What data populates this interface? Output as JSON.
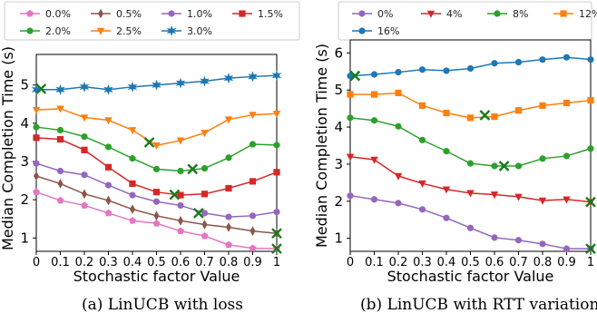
{
  "chart_data": [
    {
      "type": "line",
      "xlabel": "Stochastic factor Value",
      "ylabel": "Median Completion Time (s)",
      "xlim": [
        0,
        1.0
      ],
      "ylim": [
        0.65,
        5.8
      ],
      "x_ticks": [
        0,
        0.1,
        0.2,
        0.3,
        0.4,
        0.5,
        0.6,
        0.7,
        0.8,
        0.9,
        1
      ],
      "x_tick_labels": [
        "0",
        "0.1",
        "0.2",
        "0.3",
        "0.4",
        "0.5",
        "0.6",
        "0.7",
        "0.8",
        "0.9",
        "1"
      ],
      "y_ticks": [
        1,
        2,
        3,
        4,
        5
      ],
      "y_tick_labels": [
        "1",
        "2",
        "3",
        "4",
        "5"
      ],
      "grid": false,
      "legend_placement": "top",
      "legend_columns": 4,
      "x": [
        0,
        0.1,
        0.2,
        0.3,
        0.4,
        0.5,
        0.6,
        0.7,
        0.8,
        0.9,
        1.0
      ],
      "series": [
        {
          "name": "0.0%",
          "color": "#e377c2",
          "marker": "pentagon",
          "values": [
            2.2,
            1.98,
            1.85,
            1.65,
            1.45,
            1.38,
            1.18,
            1.05,
            0.82,
            0.73,
            0.72
          ],
          "optimum": [
            1.0,
            0.72
          ]
        },
        {
          "name": "0.5%",
          "color": "#8c564b",
          "marker": "thin_diamond",
          "values": [
            2.62,
            2.42,
            2.15,
            1.98,
            1.75,
            1.58,
            1.45,
            1.35,
            1.28,
            1.18,
            1.12
          ],
          "optimum": [
            1.0,
            1.12
          ]
        },
        {
          "name": "1.0%",
          "color": "#9467bd",
          "marker": "circle",
          "values": [
            2.95,
            2.75,
            2.65,
            2.38,
            2.12,
            1.95,
            1.85,
            1.65,
            1.55,
            1.58,
            1.68
          ],
          "optimum": [
            0.675,
            1.65
          ]
        },
        {
          "name": "1.5%",
          "color": "#d62728",
          "marker": "square",
          "values": [
            3.62,
            3.58,
            3.3,
            2.85,
            2.42,
            2.2,
            2.12,
            2.15,
            2.3,
            2.48,
            2.72
          ],
          "optimum": [
            0.575,
            2.13
          ]
        },
        {
          "name": "2.0%",
          "color": "#2ca02c",
          "marker": "circle",
          "values": [
            3.9,
            3.82,
            3.65,
            3.38,
            3.08,
            2.8,
            2.75,
            2.82,
            3.1,
            3.45,
            3.43
          ],
          "optimum": [
            0.65,
            2.8
          ]
        },
        {
          "name": "2.5%",
          "color": "#ff7f0e",
          "marker": "triangle_down",
          "values": [
            4.35,
            4.38,
            4.15,
            4.08,
            3.82,
            3.42,
            3.55,
            3.75,
            4.1,
            4.22,
            4.25
          ],
          "optimum": [
            0.47,
            3.5
          ]
        },
        {
          "name": "3.0%",
          "color": "#1f77b4",
          "marker": "star",
          "values": [
            4.88,
            4.88,
            4.95,
            4.88,
            4.95,
            5.0,
            5.05,
            5.1,
            5.18,
            5.22,
            5.25
          ],
          "optimum": [
            0.02,
            4.9
          ]
        }
      ]
    },
    {
      "type": "line",
      "xlabel": "Stochastic factor Value",
      "ylabel": "Median Completion Time (s)",
      "xlim": [
        0,
        1.0
      ],
      "ylim": [
        0.65,
        6.35
      ],
      "x_ticks": [
        0,
        0.1,
        0.2,
        0.3,
        0.4,
        0.5,
        0.6,
        0.7,
        0.8,
        0.9,
        1
      ],
      "x_tick_labels": [
        "0",
        "0.1",
        "0.2",
        "0.3",
        "0.4",
        "0.5",
        "0.6",
        "0.7",
        "0.8",
        "0.9",
        "1"
      ],
      "y_ticks": [
        1,
        2,
        3,
        4,
        5,
        6
      ],
      "y_tick_labels": [
        "1",
        "2",
        "3",
        "4",
        "5",
        "6"
      ],
      "grid": false,
      "legend_placement": "top",
      "legend_columns": 4,
      "x": [
        0,
        0.1,
        0.2,
        0.3,
        0.4,
        0.5,
        0.6,
        0.7,
        0.8,
        0.9,
        1.0
      ],
      "series": [
        {
          "name": "0%",
          "color": "#9467bd",
          "marker": "circle",
          "values": [
            2.15,
            2.05,
            1.95,
            1.78,
            1.55,
            1.28,
            1.02,
            0.95,
            0.85,
            0.72,
            0.72
          ],
          "optimum": [
            1.0,
            0.72
          ]
        },
        {
          "name": "4%",
          "color": "#d62728",
          "marker": "triangle_down",
          "values": [
            3.2,
            3.12,
            2.68,
            2.48,
            2.32,
            2.22,
            2.18,
            2.12,
            2.02,
            2.05,
            1.98
          ],
          "optimum": [
            1.0,
            1.98
          ]
        },
        {
          "name": "8%",
          "color": "#2ca02c",
          "marker": "circle",
          "values": [
            4.25,
            4.18,
            4.02,
            3.65,
            3.35,
            3.02,
            2.95,
            2.95,
            3.15,
            3.22,
            3.42
          ],
          "optimum": [
            0.64,
            2.95
          ]
        },
        {
          "name": "12%",
          "color": "#ff7f0e",
          "marker": "square",
          "values": [
            4.88,
            4.88,
            4.92,
            4.58,
            4.38,
            4.25,
            4.28,
            4.45,
            4.58,
            4.65,
            4.72
          ],
          "optimum": [
            0.56,
            4.32
          ]
        },
        {
          "name": "16%",
          "color": "#1f77b4",
          "marker": "circle",
          "values": [
            5.38,
            5.42,
            5.48,
            5.55,
            5.52,
            5.58,
            5.72,
            5.75,
            5.82,
            5.88,
            5.82
          ],
          "optimum": [
            0.02,
            5.38
          ]
        }
      ]
    }
  ],
  "captions": [
    "(a) LinUCB with loss",
    "(b) LinUCB with RTT variation"
  ]
}
